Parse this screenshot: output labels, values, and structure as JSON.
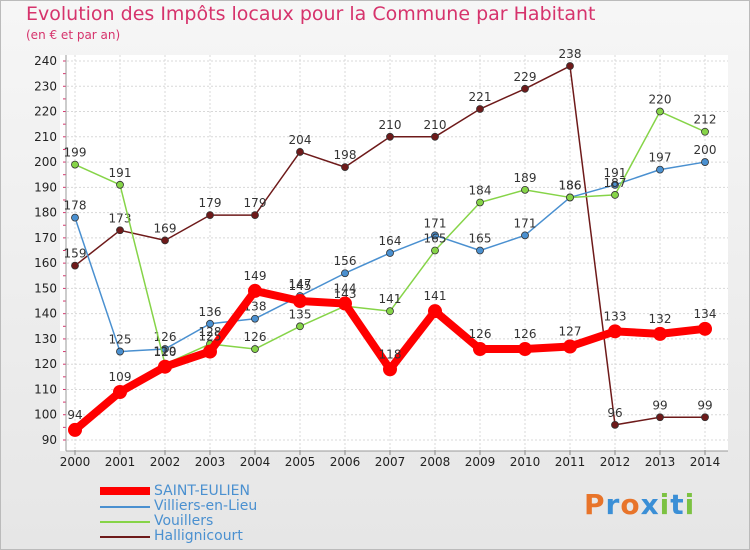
{
  "title": "Evolution des Impôts locaux pour la Commune par Habitant",
  "subtitle": "(en € et par an)",
  "brand": {
    "text": "Proxiti",
    "letters": [
      "P",
      "r",
      "o",
      "x",
      "i",
      "t",
      "i"
    ],
    "colors": [
      "#e8742a",
      "#3b8fd6",
      "#e8742a",
      "#3b8fd6",
      "#7cc242",
      "#3b8fd6",
      "#7cc242"
    ]
  },
  "chart_data": {
    "type": "line",
    "title": "Evolution des Impôts locaux pour la Commune par Habitant",
    "subtitle": "(en € et par an)",
    "xlabel": "",
    "ylabel": "",
    "ylim": [
      90,
      240
    ],
    "yticks": [
      90,
      100,
      110,
      120,
      130,
      140,
      150,
      160,
      170,
      180,
      190,
      200,
      210,
      220,
      230,
      240
    ],
    "x": [
      "2000",
      "2001",
      "2002",
      "2003",
      "2004",
      "2005",
      "2006",
      "2007",
      "2008",
      "2009",
      "2010",
      "2011",
      "2012",
      "2013",
      "2014"
    ],
    "grid": true,
    "legend_position": "bottom-left",
    "series": [
      {
        "name": "Hallignicourt",
        "color": "#6e1a1a",
        "values": [
          159,
          173,
          169,
          179,
          179,
          204,
          198,
          210,
          210,
          221,
          229,
          238,
          96,
          99,
          99
        ]
      },
      {
        "name": "Villiers-en-Lieu",
        "color": "#4a90d0",
        "values": [
          178,
          125,
          126,
          136,
          138,
          147,
          156,
          164,
          171,
          165,
          171,
          186,
          191,
          197,
          200
        ]
      },
      {
        "name": "Vouillers",
        "color": "#86d448",
        "values": [
          199,
          191,
          120,
          128,
          126,
          135,
          143,
          141,
          165,
          184,
          189,
          186,
          187,
          220,
          212
        ]
      },
      {
        "name": "SAINT-EULIEN",
        "color": "#ff0000",
        "values": [
          94,
          109,
          119,
          125,
          149,
          145,
          144,
          118,
          141,
          126,
          126,
          127,
          133,
          132,
          134
        ]
      }
    ],
    "legend_order": [
      "SAINT-EULIEN",
      "Villiers-en-Lieu",
      "Vouillers",
      "Hallignicourt"
    ]
  }
}
